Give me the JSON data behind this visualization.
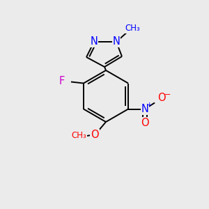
{
  "background_color": "#ebebeb",
  "bond_color": "#000000",
  "atom_colors": {
    "N": "#0000ff",
    "F": "#cc00cc",
    "O": "#ff0000",
    "C": "#000000"
  },
  "figsize": [
    3.0,
    3.0
  ],
  "dpi": 100,
  "bond_lw": 1.4,
  "font_size": 10.5
}
